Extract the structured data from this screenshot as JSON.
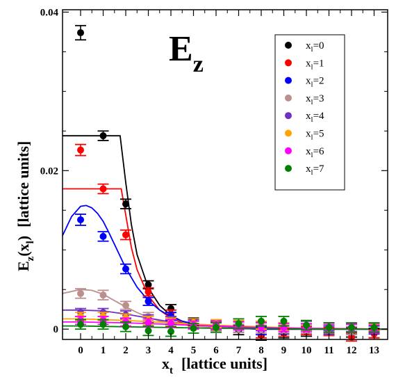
{
  "chart_data": {
    "type": "scatter",
    "title": "E",
    "title_subscript": "z",
    "xlabel_main": "x",
    "xlabel_sub": "t",
    "xlabel_units": "[lattice units]",
    "ylabel_main": "E",
    "ylabel_sub": "z",
    "ylabel_paren": "(x",
    "ylabel_paren_sub": "l",
    "ylabel_close": ")",
    "ylabel_units": "[lattice units]",
    "xlim": [
      -0.8,
      13.6
    ],
    "ylim": [
      -0.0013,
      0.0403
    ],
    "x_ticks": [
      0,
      1,
      2,
      3,
      4,
      5,
      6,
      7,
      8,
      9,
      10,
      11,
      12,
      13
    ],
    "x_tick_labels": [
      "0",
      "1",
      "2",
      "3",
      "4",
      "5",
      "6",
      "7",
      "8",
      "9",
      "10",
      "11",
      "12",
      "13"
    ],
    "y_ticks": [
      0,
      0.02,
      0.04
    ],
    "y_tick_labels": [
      "0",
      "0.02",
      "0.04"
    ],
    "grid": false,
    "legend_position": "top-right",
    "series": [
      {
        "name": "x",
        "name_sub": "l",
        "name_suffix": "=0",
        "color": "#000000",
        "x": [
          0,
          1,
          2,
          3,
          4,
          5,
          6,
          7,
          8,
          9,
          10,
          11,
          12,
          13
        ],
        "y": [
          0.0374,
          0.0244,
          0.0158,
          0.0056,
          0.0026,
          0.0009,
          0.0004,
          -0.0001,
          -0.0008,
          -0.0005,
          -0.0003,
          -0.0002,
          -0.0004,
          -0.0005
        ],
        "err": [
          0.0009,
          0.0006,
          0.0006,
          0.0005,
          0.0005,
          0.0005,
          0.0005,
          0.0006,
          0.0006,
          0.0006,
          0.0006,
          0.0006,
          0.0006,
          0.0006
        ],
        "fit_x": [
          -0.8,
          0,
          0.5,
          1,
          1.5,
          1.75,
          2,
          2.25,
          2.5,
          3,
          3.5,
          4,
          4.5,
          5,
          6,
          7,
          8,
          13.6
        ],
        "fit_y": [
          0.0244,
          0.0244,
          0.0244,
          0.0244,
          0.0244,
          0.0244,
          0.0185,
          0.0132,
          0.0094,
          0.0052,
          0.003,
          0.0017,
          0.001,
          0.0006,
          0.0002,
          0.0001,
          0.0,
          0.0
        ]
      },
      {
        "name": "x",
        "name_sub": "l",
        "name_suffix": "=1",
        "color": "#ff0000",
        "x": [
          0,
          1,
          2,
          3,
          4,
          5,
          6,
          7,
          8,
          9,
          10,
          11,
          12,
          13
        ],
        "y": [
          0.0226,
          0.0177,
          0.0119,
          0.0047,
          0.0019,
          0.0007,
          0.0004,
          0.0001,
          -0.0006,
          -0.0004,
          -0.0002,
          -0.0003,
          -0.001,
          -0.0006
        ],
        "err": [
          0.0007,
          0.0006,
          0.0006,
          0.0005,
          0.0005,
          0.0005,
          0.0005,
          0.0005,
          0.0005,
          0.0005,
          0.0005,
          0.0005,
          0.0005,
          0.0005
        ],
        "fit_x": [
          -0.8,
          0,
          0.5,
          1,
          1.5,
          1.8,
          2,
          2.25,
          2.5,
          3,
          3.5,
          4,
          4.5,
          5,
          6,
          7,
          8,
          13.6
        ],
        "fit_y": [
          0.0177,
          0.0177,
          0.0177,
          0.0177,
          0.0177,
          0.0177,
          0.0144,
          0.0103,
          0.0075,
          0.0042,
          0.0024,
          0.0014,
          0.0008,
          0.0005,
          0.0002,
          0.0001,
          0.0,
          0.0
        ]
      },
      {
        "name": "x",
        "name_sub": "l",
        "name_suffix": "=2",
        "color": "#0000ff",
        "x": [
          0,
          1,
          2,
          3,
          4,
          5,
          6,
          7,
          8,
          9,
          10,
          11,
          12,
          13
        ],
        "y": [
          0.0138,
          0.0117,
          0.0076,
          0.0035,
          0.0016,
          0.0007,
          0.0003,
          0.0001,
          -0.0002,
          -0.0001,
          0.0,
          -0.0001,
          -0.0002,
          -0.0001
        ],
        "err": [
          0.0007,
          0.0006,
          0.0006,
          0.0005,
          0.0005,
          0.0005,
          0.0005,
          0.0005,
          0.0005,
          0.0005,
          0.0005,
          0.0005,
          0.0005,
          0.0005
        ],
        "fit_x": [
          -0.8,
          -0.4,
          0,
          0.25,
          0.5,
          0.75,
          1,
          1.25,
          1.5,
          1.75,
          2,
          2.5,
          3,
          3.5,
          4,
          4.5,
          5,
          6,
          7,
          8,
          13.6
        ],
        "fit_y": [
          0.0118,
          0.0142,
          0.0155,
          0.0156,
          0.0153,
          0.0146,
          0.0136,
          0.0122,
          0.0107,
          0.0092,
          0.0077,
          0.0053,
          0.0036,
          0.0024,
          0.0016,
          0.001,
          0.0007,
          0.0003,
          0.0001,
          0.0,
          0.0
        ]
      },
      {
        "name": "x",
        "name_sub": "l",
        "name_suffix": "=3",
        "color": "#bc8f8f",
        "x": [
          0,
          1,
          2,
          3,
          4,
          5,
          6,
          7,
          8,
          9,
          10,
          11,
          12,
          13
        ],
        "y": [
          0.0045,
          0.0043,
          0.003,
          0.0016,
          0.0011,
          0.0005,
          0.0003,
          0.0001,
          0.0,
          0.0,
          0.0,
          0.0,
          -0.0002,
          0.0
        ],
        "err": [
          0.0006,
          0.0006,
          0.0005,
          0.0005,
          0.0005,
          0.0005,
          0.0005,
          0.0005,
          0.0005,
          0.0005,
          0.0005,
          0.0005,
          0.0005,
          0.0005
        ],
        "fit_x": [
          -0.8,
          0,
          0.5,
          1,
          1.5,
          2,
          2.5,
          3,
          3.5,
          4,
          5,
          6,
          7,
          13.6
        ],
        "fit_y": [
          0.0045,
          0.005,
          0.0049,
          0.0044,
          0.0036,
          0.0028,
          0.0021,
          0.0015,
          0.001,
          0.0007,
          0.0004,
          0.0002,
          0.0001,
          0.0
        ]
      },
      {
        "name": "x",
        "name_sub": "l",
        "name_suffix": "=4",
        "color": "#7030c0",
        "x": [
          0,
          1,
          2,
          3,
          4,
          5,
          6,
          7,
          8,
          9,
          10,
          11,
          12,
          13
        ],
        "y": [
          0.0021,
          0.0021,
          0.0018,
          0.0013,
          0.0011,
          0.0008,
          0.0006,
          0.0005,
          0.0004,
          0.0003,
          0.0005,
          0.0003,
          0.0002,
          0.0002
        ],
        "err": [
          0.0005,
          0.0005,
          0.0005,
          0.0005,
          0.0005,
          0.0005,
          0.0005,
          0.0005,
          0.0005,
          0.0005,
          0.0005,
          0.0005,
          0.0005,
          0.0005
        ],
        "fit_x": [
          -0.8,
          0,
          1,
          2,
          3,
          4,
          5,
          6,
          7,
          8,
          13.6
        ],
        "fit_y": [
          0.0024,
          0.0024,
          0.0023,
          0.0019,
          0.0014,
          0.0009,
          0.0006,
          0.0004,
          0.0002,
          0.0001,
          0.0
        ]
      },
      {
        "name": "x",
        "name_sub": "l",
        "name_suffix": "=5",
        "color": "#ffa500",
        "x": [
          0,
          1,
          2,
          3,
          4,
          5,
          6,
          7,
          8,
          9,
          10,
          11,
          12,
          13
        ],
        "y": [
          0.0016,
          0.0016,
          0.0014,
          0.0011,
          0.0009,
          0.0008,
          0.0007,
          0.0006,
          0.0005,
          0.0003,
          0.0002,
          0.0001,
          0.0001,
          0.0001
        ],
        "err": [
          0.0005,
          0.0005,
          0.0005,
          0.0005,
          0.0005,
          0.0005,
          0.0005,
          0.0005,
          0.0005,
          0.0005,
          0.0005,
          0.0005,
          0.0005,
          0.0005
        ],
        "fit_x": [
          -0.8,
          0,
          2,
          4,
          6,
          8,
          10,
          13.6
        ],
        "fit_y": [
          0.0013,
          0.0013,
          0.0011,
          0.0008,
          0.0005,
          0.0003,
          0.0001,
          0.0
        ]
      },
      {
        "name": "x",
        "name_sub": "l",
        "name_suffix": "=6",
        "color": "#ff00ff",
        "x": [
          0,
          1,
          2,
          3,
          4,
          5,
          6,
          7,
          8,
          9,
          10,
          11,
          12,
          13
        ],
        "y": [
          0.0011,
          0.0011,
          0.0009,
          0.0008,
          0.0007,
          0.0005,
          0.0005,
          0.0004,
          0.0003,
          0.0002,
          0.0002,
          0.0001,
          0.0001,
          0.0
        ],
        "err": [
          0.0005,
          0.0005,
          0.0005,
          0.0005,
          0.0005,
          0.0005,
          0.0005,
          0.0005,
          0.0005,
          0.0005,
          0.0005,
          0.0005,
          0.0005,
          0.0005
        ],
        "fit_x": [
          -0.8,
          0,
          2,
          4,
          6,
          8,
          10,
          13.6
        ],
        "fit_y": [
          0.0009,
          0.0009,
          0.0008,
          0.0006,
          0.0004,
          0.0002,
          0.0001,
          0.0
        ]
      },
      {
        "name": "x",
        "name_sub": "l",
        "name_suffix": "=7",
        "color": "#008000",
        "x": [
          0,
          1,
          2,
          3,
          4,
          5,
          6,
          7,
          8,
          9,
          10,
          11,
          12,
          13
        ],
        "y": [
          0.0006,
          0.0006,
          0.0003,
          -0.0002,
          -0.0003,
          0.0001,
          0.0002,
          0.0007,
          0.001,
          0.001,
          0.0005,
          0.0002,
          0.0002,
          0.0002
        ],
        "err": [
          0.0006,
          0.0006,
          0.0006,
          0.0006,
          0.0006,
          0.0006,
          0.0006,
          0.0006,
          0.0006,
          0.0006,
          0.0006,
          0.0006,
          0.0006,
          0.0006
        ],
        "fit_x": [
          -0.8,
          0,
          2,
          4,
          6,
          8,
          10,
          13.6
        ],
        "fit_y": [
          0.0004,
          0.0004,
          0.0003,
          0.0002,
          0.0001,
          0.0001,
          0.0,
          0.0
        ]
      }
    ]
  }
}
